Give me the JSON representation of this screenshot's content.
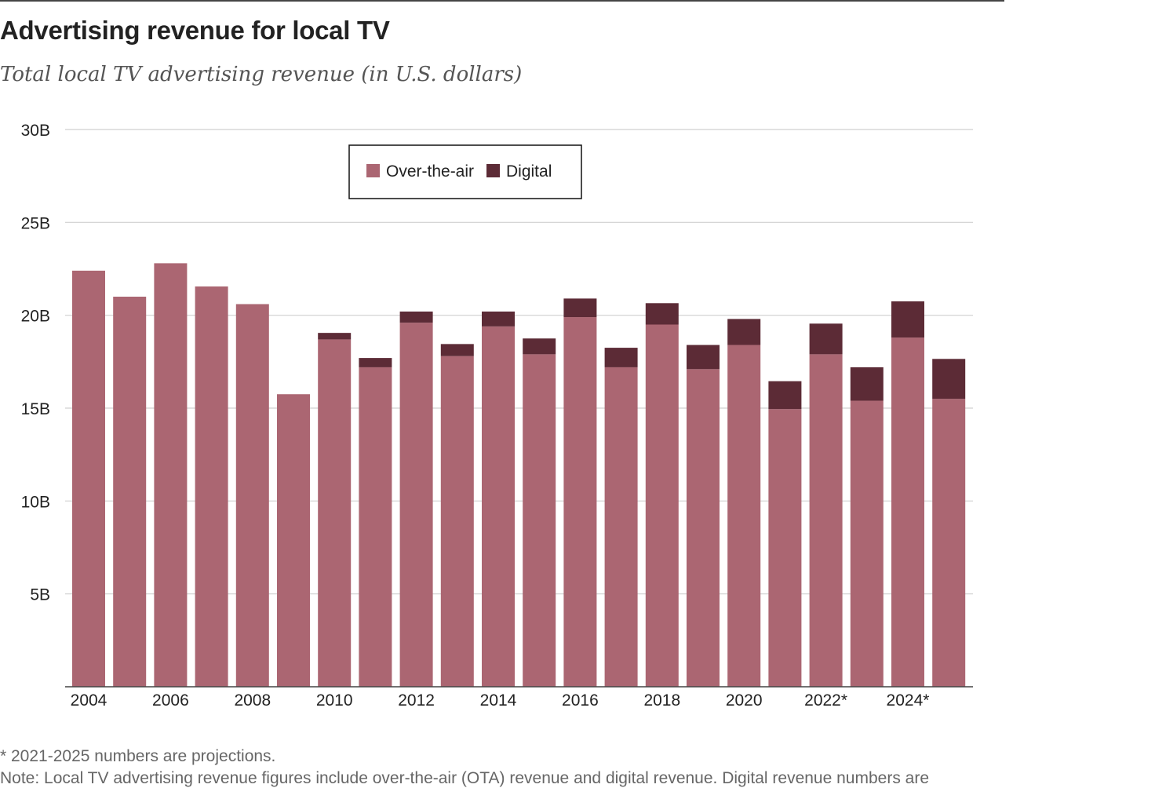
{
  "header": {
    "title": "Advertising revenue for local TV",
    "subtitle": "Total local TV advertising revenue (in U.S. dollars)"
  },
  "footnotes": {
    "projections": "* 2021-2025 numbers are projections.",
    "note": "Note: Local TV advertising revenue figures include over-the-air (OTA) revenue and digital revenue. Digital revenue numbers are"
  },
  "colors": {
    "over_the_air": "#ab6672",
    "digital": "#5c2b36",
    "grid": "#d0d0d0",
    "axis": "#444444"
  },
  "chart_data": {
    "type": "bar",
    "stacked": true,
    "x": [
      "2004",
      "2005",
      "2006",
      "2007",
      "2008",
      "2009",
      "2010",
      "2011",
      "2012",
      "2013",
      "2014",
      "2015",
      "2016",
      "2017",
      "2018",
      "2019",
      "2020",
      "2021",
      "2022",
      "2023",
      "2024",
      "2025"
    ],
    "x_tick_labels": [
      "2004",
      "",
      "2006",
      "",
      "2008",
      "",
      "2010",
      "",
      "2012",
      "",
      "2014",
      "",
      "2016",
      "",
      "2018",
      "",
      "2020",
      "",
      "2022*",
      "",
      "2024*",
      ""
    ],
    "series": [
      {
        "name": "Over-the-air",
        "values": [
          22.4,
          21.0,
          22.8,
          21.55,
          20.6,
          15.75,
          18.7,
          17.2,
          19.6,
          17.8,
          19.4,
          17.9,
          19.9,
          17.2,
          19.5,
          17.1,
          18.4,
          14.95,
          17.9,
          15.4,
          18.8,
          15.5
        ]
      },
      {
        "name": "Digital",
        "values": [
          0,
          0,
          0,
          0,
          0,
          0,
          0.35,
          0.5,
          0.6,
          0.65,
          0.8,
          0.85,
          1.0,
          1.05,
          1.15,
          1.3,
          1.4,
          1.5,
          1.65,
          1.8,
          1.95,
          2.15
        ]
      }
    ],
    "y_ticks": [
      5,
      10,
      15,
      20,
      25,
      30
    ],
    "y_tick_labels": [
      "5B",
      "10B",
      "15B",
      "20B",
      "25B",
      "30B"
    ],
    "unit": "billion U.S. dollars",
    "ylim": [
      0,
      30
    ],
    "grid": true,
    "legend_position": "top-left"
  }
}
